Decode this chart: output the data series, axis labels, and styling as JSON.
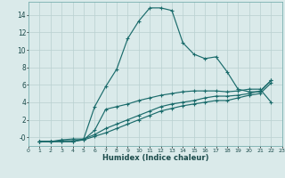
{
  "xlabel": "Humidex (Indice chaleur)",
  "bg_color": "#daeaea",
  "grid_color": "#b8d0d0",
  "line_color": "#1a6b6b",
  "xlim": [
    0,
    23
  ],
  "ylim": [
    -1,
    15.5
  ],
  "xticks": [
    0,
    1,
    2,
    3,
    4,
    5,
    6,
    7,
    8,
    9,
    10,
    11,
    12,
    13,
    14,
    15,
    16,
    17,
    18,
    19,
    20,
    21,
    22,
    23
  ],
  "yticks": [
    0,
    2,
    4,
    6,
    8,
    10,
    12,
    14
  ],
  "ytick_labels": [
    "-0",
    "2",
    "4",
    "6",
    "8",
    "10",
    "12",
    "14"
  ],
  "lines": [
    {
      "x": [
        1,
        2,
        3,
        4,
        5,
        6,
        7,
        8,
        9,
        10,
        11,
        12,
        13,
        14,
        15,
        16,
        17,
        18,
        19,
        20,
        21,
        22
      ],
      "y": [
        -0.5,
        -0.5,
        -0.3,
        -0.2,
        -0.2,
        3.5,
        5.8,
        7.8,
        11.3,
        13.3,
        14.8,
        14.8,
        14.5,
        10.8,
        9.5,
        9.0,
        9.2,
        7.5,
        5.5,
        5.2,
        5.2,
        6.5
      ]
    },
    {
      "x": [
        1,
        2,
        3,
        4,
        5,
        6,
        7,
        8,
        9,
        10,
        11,
        12,
        13,
        14,
        15,
        16,
        17,
        18,
        19,
        20,
        21,
        22
      ],
      "y": [
        -0.5,
        -0.5,
        -0.4,
        -0.4,
        -0.3,
        0.8,
        3.2,
        3.5,
        3.8,
        4.2,
        4.5,
        4.8,
        5.0,
        5.2,
        5.3,
        5.3,
        5.3,
        5.2,
        5.3,
        5.5,
        5.5,
        4.0
      ]
    },
    {
      "x": [
        1,
        2,
        3,
        4,
        5,
        6,
        7,
        8,
        9,
        10,
        11,
        12,
        13,
        14,
        15,
        16,
        17,
        18,
        19,
        20,
        21,
        22
      ],
      "y": [
        -0.5,
        -0.5,
        -0.5,
        -0.5,
        -0.2,
        0.3,
        1.0,
        1.5,
        2.0,
        2.5,
        3.0,
        3.5,
        3.8,
        4.0,
        4.2,
        4.5,
        4.7,
        4.7,
        4.8,
        5.0,
        5.3,
        6.5
      ]
    },
    {
      "x": [
        1,
        2,
        3,
        4,
        5,
        6,
        7,
        8,
        9,
        10,
        11,
        12,
        13,
        14,
        15,
        16,
        17,
        18,
        19,
        20,
        21,
        22
      ],
      "y": [
        -0.5,
        -0.5,
        -0.5,
        -0.5,
        -0.3,
        0.1,
        0.5,
        1.0,
        1.5,
        2.0,
        2.5,
        3.0,
        3.3,
        3.6,
        3.8,
        4.0,
        4.2,
        4.2,
        4.5,
        4.8,
        5.0,
        6.2
      ]
    }
  ]
}
